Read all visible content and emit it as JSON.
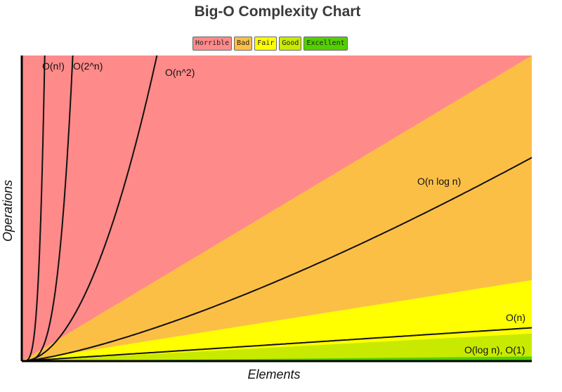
{
  "chart_data": {
    "type": "area",
    "title": "Big-O Complexity Chart",
    "xlabel": "Elements",
    "ylabel": "Operations",
    "grid": false,
    "legend_placement": "top-center",
    "zones": [
      {
        "name": "Horrible",
        "color": "#ff8a8a"
      },
      {
        "name": "Bad",
        "color": "#fcbf46"
      },
      {
        "name": "Fair",
        "color": "#ffff00"
      },
      {
        "name": "Good",
        "color": "#c8ea00"
      },
      {
        "name": "Excellent",
        "color": "#53d000"
      }
    ],
    "curves": [
      {
        "name": "O(n!)",
        "fn": "factorial"
      },
      {
        "name": "O(2^n)",
        "fn": "exp2"
      },
      {
        "name": "O(n^2)",
        "fn": "square"
      },
      {
        "name": "O(n log n)",
        "fn": "nlogn"
      },
      {
        "name": "O(n)",
        "fn": "linear"
      },
      {
        "name": "O(log n), O(1)",
        "fn": "flat"
      }
    ]
  }
}
